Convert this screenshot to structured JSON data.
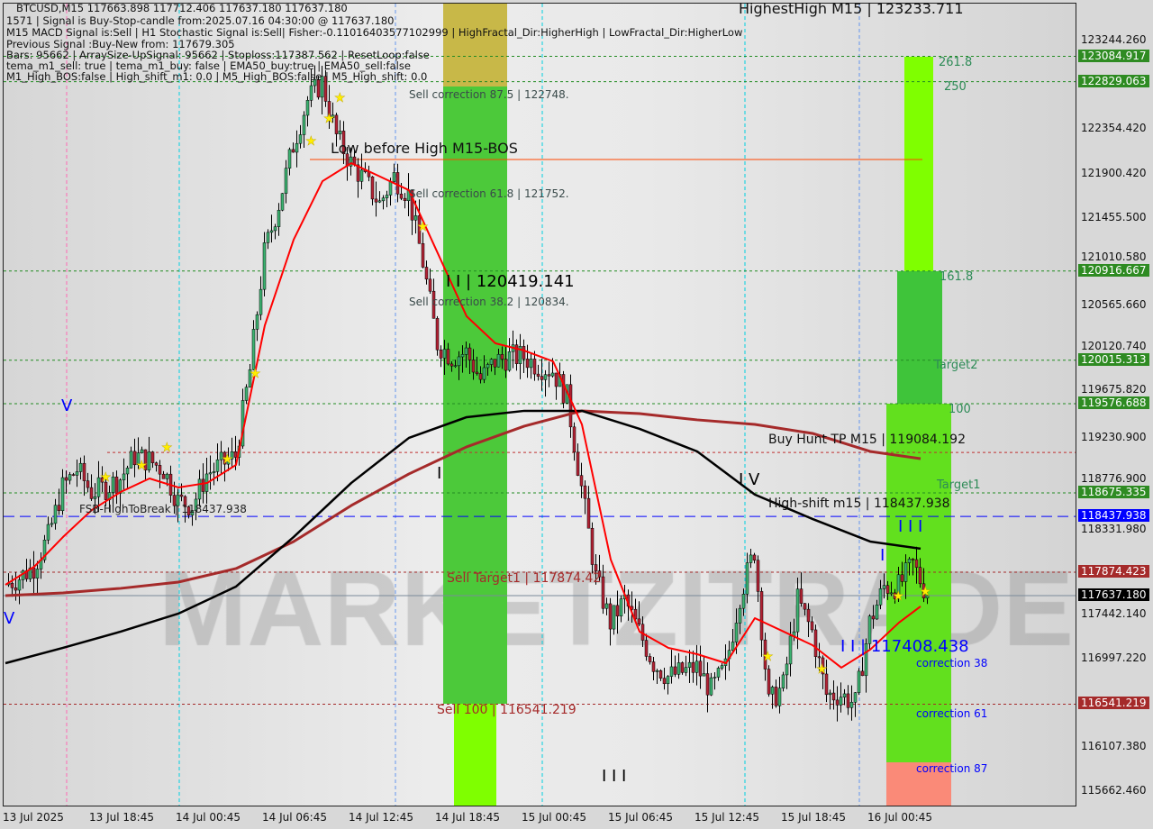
{
  "header": {
    "symbol_line": "BTCUSD,M15  117663.898 117712.406 117637.180 117637.180",
    "lines": [
      "1571 | Signal is Buy-Stop-candle from:2025.07.16 04:30:00 @ 117637.180",
      "M15 MACD Signal is:Sell | H1 Stochastic Signal is:Sell| Fisher:-0.11016403577102999 | HighFractal_Dir:HigherHigh | LowFractal_Dir:HigherLow",
      "Previous Signal :Buy-New from: 117679.305",
      "Bars: 95662 | ArraySize-UpSignal: 95662 | Stoploss:117387.562 | ResetLoop:false",
      "tema_m1_sell: true | tema_m1_buy: false | EMA50_buy:true | EMA50_sell:false",
      "M1_High_BOS:false | High_shift_m1: 0.0 | M5_High_BOS:false | M5_High_shift: 0.0"
    ]
  },
  "watermark": "MARKETZITRADE",
  "chart_data": {
    "type": "candlestick",
    "symbol": "BTCUSD",
    "timeframe": "M15",
    "x_start": "2025-07-13 12:45",
    "sample_interval_minutes": 60,
    "close_hourly": [
      117747,
      117820,
      117930,
      118230,
      118730,
      118912,
      118685,
      118730,
      118821,
      119049,
      119003,
      118912,
      118594,
      118548,
      118867,
      118958,
      119049,
      119913,
      121096,
      121596,
      122188,
      122643,
      122825,
      122279,
      122006,
      121824,
      121596,
      121870,
      121688,
      121005,
      120186,
      120050,
      120095,
      119822,
      120004,
      120050,
      120050,
      119959,
      119913,
      119640,
      118730,
      117820,
      117365,
      117593,
      117274,
      116956,
      116819,
      116865,
      116910,
      116683,
      116910,
      117638,
      118093,
      116546,
      116728,
      117593,
      117274,
      116637,
      116637,
      116546,
      117365,
      117729,
      117729,
      117956
    ],
    "last_close": 117637.18,
    "ma_black_4h": [
      116955,
      117110,
      117274,
      117456,
      117729,
      118230,
      118776,
      119231,
      119440,
      119504,
      119504,
      119322,
      119094,
      118658,
      118412,
      118184,
      118112
    ],
    "ma_brown_4h": [
      117638,
      117665,
      117711,
      117774,
      117911,
      118184,
      118548,
      118867,
      119140,
      119349,
      119504,
      119476,
      119413,
      119367,
      119276,
      119094,
      119021
    ],
    "ema_red_2h": [
      117747,
      117930,
      118230,
      118503,
      118685,
      118821,
      118730,
      118776,
      118958,
      120368,
      121233,
      121824,
      122006,
      121870,
      121733,
      121096,
      120459,
      120186,
      120113,
      120004,
      119367,
      118002,
      117274,
      117110,
      117046,
      116955,
      117410,
      117274,
      117137,
      116910,
      117092,
      117365,
      117529
    ],
    "ylim": [
      115500,
      123500
    ],
    "y_ticks": [
      "123244.260",
      "122354.420",
      "121900.420",
      "121455.500",
      "121010.580",
      "120565.660",
      "120120.740",
      "119675.820",
      "119230.900",
      "118776.900",
      "118331.980",
      "117442.140",
      "116997.220",
      "116107.380",
      "115662.460"
    ],
    "x_ticks": [
      "13 Jul 2025",
      "13 Jul 18:45",
      "14 Jul 00:45",
      "14 Jul 06:45",
      "14 Jul 12:45",
      "14 Jul 18:45",
      "15 Jul 00:45",
      "15 Jul 06:45",
      "15 Jul 12:45",
      "15 Jul 18:45",
      "16 Jul 00:45"
    ],
    "levels": [
      {
        "price": 123084.917,
        "label": "123084.917",
        "color": "#228b22",
        "style": "dashed"
      },
      {
        "price": 122829.063,
        "label": "122829.063",
        "color": "#228b22",
        "style": "dashed"
      },
      {
        "price": 120916.667,
        "label": "120916.667",
        "color": "#228b22",
        "style": "dashed"
      },
      {
        "price": 120015.313,
        "label": "120015.313",
        "color": "#228b22",
        "style": "dashed"
      },
      {
        "price": 119576.688,
        "label": "119576.688",
        "color": "#228b22",
        "style": "dashed"
      },
      {
        "price": 118675.335,
        "label": "118675.335",
        "color": "#228b22",
        "style": "dashed"
      },
      {
        "price": 118437.938,
        "label": "118437.938",
        "color": "#0000ff",
        "style": "longdash"
      },
      {
        "price": 117874.423,
        "label": "117874.423",
        "color": "#a52a2a",
        "style": "dashed"
      },
      {
        "price": 117637.18,
        "label": "117637.180",
        "color": "#000000",
        "style": "solid"
      },
      {
        "price": 116541.219,
        "label": "116541.219",
        "color": "#a52a2a",
        "style": "dashed"
      }
    ],
    "annotations": {
      "highest_high": "HighestHigh   M15 | 123233.711",
      "low_before_high": "Low before High   M15-BOS",
      "sell_corr_875": "Sell correction 87.5 | 122748.",
      "sell_corr_618": "Sell correction 61.8 | 121752.",
      "sell_corr_382": "Sell correction 38.2 | 120834.",
      "wave_ii": "I I | 120419.141",
      "sell_target1": "Sell Target1 | 117874.42",
      "sell_100": "Sell 100 | 116541.219",
      "buy_hunt_tp": "Buy Hunt TP M15 | 119084.192",
      "high_shift": "High-shift m15 | 118437.938",
      "fsb_high": "FSB-HighToBreak | 118437.938",
      "wave_ii_blue": "I I | 117408.438",
      "fib_2618": "261.8",
      "fib_250": "250",
      "fib_1618": "161.8",
      "target2": "Target2",
      "fib_100": "100",
      "target1": "Target1",
      "corr_38": "correction 38",
      "corr_61": "correction 61",
      "corr_87": "correction 87",
      "wave_v_1": "V",
      "wave_v_2": "V",
      "wave_i": "I",
      "wave_iv": "I V",
      "wave_iii": "I I I",
      "wave_iii_blue": "I I I",
      "wave_i_blue": "I"
    },
    "colors": {
      "bull": "#3cb371",
      "bear": "#b22234",
      "ema": "#ff0000",
      "ma_slow": "#000000",
      "ma_mid": "#a52a2a",
      "zone_green": "#4cc93a",
      "zone_lime": "#7fff00",
      "zone_salmon": "#fa8a78"
    }
  }
}
